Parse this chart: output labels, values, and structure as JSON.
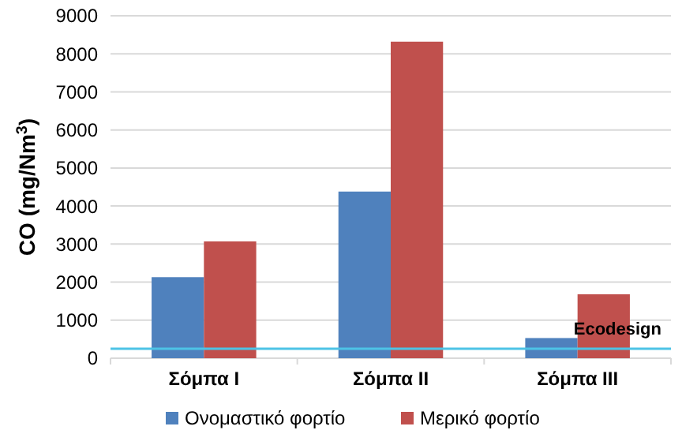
{
  "chart_data": {
    "type": "bar",
    "ylabel": "CO (mg/Nm$^{3}$)",
    "categories": [
      "Σόμπα Ι",
      "Σόμπα ΙΙ",
      "Σόμπα ΙΙΙ"
    ],
    "series": [
      {
        "name": "Ονομαστικό φορτίο",
        "color": "#4f81bd",
        "values": [
          2130,
          4380,
          530
        ]
      },
      {
        "name": "Μερικό φορτίο",
        "color": "#c0504d",
        "values": [
          3070,
          8320,
          1680
        ]
      }
    ],
    "ylim": [
      0,
      9000
    ],
    "yticks": [
      0,
      1000,
      2000,
      3000,
      4000,
      5000,
      6000,
      7000,
      8000,
      9000
    ],
    "grid": "y",
    "legend": "bottom",
    "ref_lines": [
      {
        "axis": "y",
        "value": 250,
        "label": "Ecodesign",
        "color": "#4dc3e6"
      }
    ]
  }
}
